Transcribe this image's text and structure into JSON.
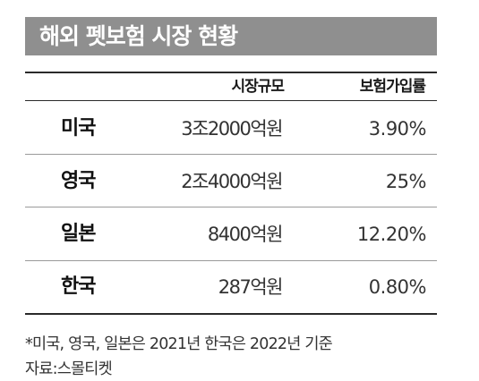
{
  "title": "해외 펫보험 시장 현황",
  "table": {
    "headers": {
      "country": "",
      "market_size": "시장규모",
      "insurance_rate": "보험가입률"
    },
    "rows": [
      {
        "country": "미국",
        "market_size": "3조2000억원",
        "insurance_rate": "3.90%"
      },
      {
        "country": "영국",
        "market_size": "2조4000억원",
        "insurance_rate": "25%"
      },
      {
        "country": "일본",
        "market_size": "8400억원",
        "insurance_rate": "12.20%"
      },
      {
        "country": "한국",
        "market_size": "287억원",
        "insurance_rate": "0.80%"
      }
    ]
  },
  "footnote": "*미국, 영국, 일본은 2021년 한국은 2022년 기준",
  "source": "자료:스몰티켓",
  "colors": {
    "title_bar": "#8f8f8f",
    "title_text": "#ffffff",
    "rule": "#2a2a2a"
  }
}
